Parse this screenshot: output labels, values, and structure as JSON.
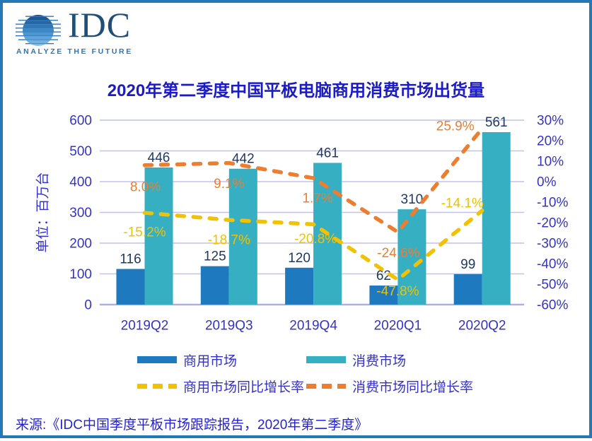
{
  "logo": {
    "name": "IDC",
    "tagline": "ANALYZE THE FUTURE"
  },
  "title": "2020年第二季度中国平板电脑商用消费市场出货量",
  "source": "来源:《IDC中国季度平板市场跟踪报告，2020年第二季度》",
  "chart_data": {
    "type": "bar",
    "subtype": "combo-bar-line",
    "categories": [
      "2019Q2",
      "2019Q3",
      "2019Q4",
      "2020Q1",
      "2020Q2"
    ],
    "series": [
      {
        "name": "商用市场",
        "type": "bar",
        "axis": "left",
        "color": "#1E79BE",
        "values": [
          116,
          125,
          120,
          62,
          99
        ]
      },
      {
        "name": "消费市场",
        "type": "bar",
        "axis": "left",
        "color": "#36AFC2",
        "values": [
          446,
          442,
          461,
          310,
          561
        ]
      },
      {
        "name": "商用市场同比增长率",
        "type": "line",
        "style": "dashed",
        "axis": "right",
        "color": "#F2C100",
        "values": [
          -15.2,
          -18.7,
          -20.8,
          -47.8,
          -14.1
        ],
        "labels": [
          "-15.2%",
          "-18.7%",
          "-20.8%",
          "-47.8%",
          "-14.1%"
        ]
      },
      {
        "name": "消费市场同比增长率",
        "type": "line",
        "style": "dashed",
        "axis": "right",
        "color": "#EE7D30",
        "values": [
          8.0,
          9.1,
          1.7,
          -24.6,
          25.9
        ],
        "labels": [
          "8.0%",
          "9.1%",
          "1.7%",
          "-24.6%",
          "25.9%"
        ]
      }
    ],
    "left_axis": {
      "title": "单位：百万台",
      "min": 0,
      "max": 600,
      "step": 100,
      "tick_labels": [
        "600",
        "500",
        "400",
        "300",
        "200",
        "100",
        "0"
      ]
    },
    "right_axis": {
      "min": -60,
      "max": 30,
      "step": 10,
      "tick_labels": [
        "30%",
        "20%",
        "10%",
        "0%",
        "-10%",
        "-20%",
        "-30%",
        "-40%",
        "-50%",
        "-60%"
      ]
    },
    "grid": true,
    "legend_position": "bottom"
  },
  "legend": {
    "items": [
      {
        "label": "商用市场",
        "swatch": "solid",
        "color": "#1E79BE"
      },
      {
        "label": "消费市场",
        "swatch": "solid",
        "color": "#36AFC2"
      },
      {
        "label": "商用市场同比增长率",
        "swatch": "dashed",
        "color": "#F2C100"
      },
      {
        "label": "消费市场同比增长率",
        "swatch": "dashed",
        "color": "#EE7D30"
      }
    ]
  },
  "colors": {
    "frame": "#2478B4",
    "title_text": "#1B1BC8",
    "axis_text": "#3333CC",
    "bar_label": "#1F3864",
    "source_text": "#2424CC",
    "gridline": "#C1C1EA",
    "gridline_strong": "#AFAFE3",
    "logo_navy": "#1F4E79",
    "logo_blue": "#2E75B6"
  }
}
